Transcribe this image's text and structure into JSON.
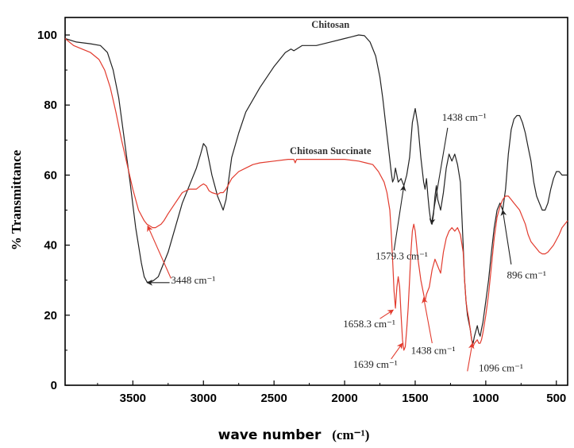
{
  "chart_data": {
    "type": "line",
    "title": "",
    "xlabel": "wave number",
    "xlabel_unit": "(cm⁻¹)",
    "ylabel": "% Transmittance",
    "xlim": [
      3980,
      420
    ],
    "x_reversed": true,
    "ylim": [
      0,
      105
    ],
    "x_ticks": [
      3500,
      3000,
      2500,
      2000,
      1500,
      1000,
      500
    ],
    "y_ticks": [
      0,
      20,
      40,
      60,
      80,
      100
    ],
    "grid": false,
    "series": [
      {
        "name": "Chitosan",
        "color": "#222222",
        "points": [
          [
            3980,
            99
          ],
          [
            3900,
            98
          ],
          [
            3800,
            97.5
          ],
          [
            3730,
            97
          ],
          [
            3680,
            95
          ],
          [
            3640,
            90
          ],
          [
            3600,
            82
          ],
          [
            3560,
            70
          ],
          [
            3520,
            58
          ],
          [
            3480,
            45
          ],
          [
            3440,
            35
          ],
          [
            3420,
            31
          ],
          [
            3400,
            29.5
          ],
          [
            3380,
            29.3
          ],
          [
            3350,
            30
          ],
          [
            3320,
            31
          ],
          [
            3300,
            33
          ],
          [
            3250,
            38
          ],
          [
            3200,
            45
          ],
          [
            3150,
            52
          ],
          [
            3100,
            57
          ],
          [
            3050,
            62
          ],
          [
            3020,
            66
          ],
          [
            3000,
            69
          ],
          [
            2980,
            68
          ],
          [
            2960,
            64
          ],
          [
            2940,
            60
          ],
          [
            2920,
            57
          ],
          [
            2900,
            54
          ],
          [
            2880,
            52
          ],
          [
            2860,
            50
          ],
          [
            2840,
            53
          ],
          [
            2800,
            65
          ],
          [
            2750,
            72
          ],
          [
            2700,
            78
          ],
          [
            2600,
            85
          ],
          [
            2500,
            91
          ],
          [
            2420,
            95
          ],
          [
            2380,
            96
          ],
          [
            2360,
            95.5
          ],
          [
            2340,
            96
          ],
          [
            2300,
            97
          ],
          [
            2200,
            97
          ],
          [
            2100,
            98
          ],
          [
            2000,
            99
          ],
          [
            1950,
            99.5
          ],
          [
            1900,
            100
          ],
          [
            1860,
            99.8
          ],
          [
            1820,
            98
          ],
          [
            1780,
            94
          ],
          [
            1750,
            88
          ],
          [
            1730,
            82
          ],
          [
            1710,
            75
          ],
          [
            1690,
            68
          ],
          [
            1670,
            61
          ],
          [
            1660,
            58
          ],
          [
            1650,
            59
          ],
          [
            1640,
            62
          ],
          [
            1630,
            60
          ],
          [
            1620,
            58
          ],
          [
            1600,
            59
          ],
          [
            1580,
            57
          ],
          [
            1560,
            60
          ],
          [
            1540,
            65
          ],
          [
            1520,
            75
          ],
          [
            1500,
            79
          ],
          [
            1480,
            74
          ],
          [
            1460,
            65
          ],
          [
            1440,
            58
          ],
          [
            1430,
            56
          ],
          [
            1420,
            59
          ],
          [
            1410,
            54
          ],
          [
            1400,
            50
          ],
          [
            1390,
            47
          ],
          [
            1380,
            46
          ],
          [
            1370,
            49
          ],
          [
            1360,
            54
          ],
          [
            1350,
            57
          ],
          [
            1340,
            53
          ],
          [
            1320,
            50
          ],
          [
            1300,
            55
          ],
          [
            1280,
            62
          ],
          [
            1260,
            66
          ],
          [
            1240,
            64
          ],
          [
            1220,
            66
          ],
          [
            1200,
            63
          ],
          [
            1180,
            58
          ],
          [
            1160,
            40
          ],
          [
            1150,
            30
          ],
          [
            1140,
            24
          ],
          [
            1130,
            20
          ],
          [
            1120,
            18
          ],
          [
            1110,
            16
          ],
          [
            1100,
            13
          ],
          [
            1090,
            12
          ],
          [
            1080,
            14
          ],
          [
            1060,
            17
          ],
          [
            1050,
            15
          ],
          [
            1040,
            14
          ],
          [
            1030,
            16
          ],
          [
            1020,
            18
          ],
          [
            1000,
            24
          ],
          [
            980,
            30
          ],
          [
            960,
            38
          ],
          [
            940,
            45
          ],
          [
            920,
            50
          ],
          [
            900,
            52
          ],
          [
            890,
            51
          ],
          [
            880,
            50
          ],
          [
            860,
            56
          ],
          [
            840,
            66
          ],
          [
            820,
            73
          ],
          [
            800,
            76
          ],
          [
            780,
            77
          ],
          [
            760,
            77
          ],
          [
            740,
            75
          ],
          [
            720,
            72
          ],
          [
            700,
            68
          ],
          [
            680,
            64
          ],
          [
            660,
            58
          ],
          [
            640,
            54
          ],
          [
            620,
            52
          ],
          [
            600,
            50
          ],
          [
            580,
            50
          ],
          [
            560,
            52
          ],
          [
            540,
            56
          ],
          [
            520,
            59
          ],
          [
            500,
            61
          ],
          [
            480,
            61
          ],
          [
            460,
            60
          ],
          [
            440,
            60
          ],
          [
            420,
            60
          ]
        ]
      },
      {
        "name": "Chitosan Succinate",
        "color": "#e23b2e",
        "points": [
          [
            3980,
            99
          ],
          [
            3920,
            97
          ],
          [
            3860,
            96
          ],
          [
            3800,
            95
          ],
          [
            3740,
            93
          ],
          [
            3700,
            90
          ],
          [
            3660,
            85
          ],
          [
            3620,
            78
          ],
          [
            3580,
            70
          ],
          [
            3540,
            63
          ],
          [
            3500,
            56
          ],
          [
            3460,
            50
          ],
          [
            3420,
            47
          ],
          [
            3400,
            46
          ],
          [
            3380,
            45.5
          ],
          [
            3360,
            45
          ],
          [
            3340,
            45
          ],
          [
            3320,
            45.5
          ],
          [
            3300,
            46
          ],
          [
            3280,
            47
          ],
          [
            3250,
            49
          ],
          [
            3200,
            52
          ],
          [
            3150,
            55
          ],
          [
            3100,
            56
          ],
          [
            3050,
            56
          ],
          [
            3020,
            57
          ],
          [
            3000,
            57.5
          ],
          [
            2980,
            57
          ],
          [
            2960,
            55.5
          ],
          [
            2940,
            55
          ],
          [
            2900,
            54.5
          ],
          [
            2880,
            55
          ],
          [
            2860,
            55
          ],
          [
            2840,
            56
          ],
          [
            2800,
            59
          ],
          [
            2750,
            61
          ],
          [
            2700,
            62
          ],
          [
            2650,
            63
          ],
          [
            2600,
            63.5
          ],
          [
            2500,
            64
          ],
          [
            2400,
            64.5
          ],
          [
            2360,
            64.5
          ],
          [
            2350,
            63.5
          ],
          [
            2340,
            64.5
          ],
          [
            2300,
            64.5
          ],
          [
            2200,
            64.5
          ],
          [
            2100,
            64.5
          ],
          [
            2000,
            64.5
          ],
          [
            1900,
            64
          ],
          [
            1850,
            63.5
          ],
          [
            1800,
            63
          ],
          [
            1760,
            61
          ],
          [
            1720,
            58
          ],
          [
            1700,
            55
          ],
          [
            1680,
            50
          ],
          [
            1670,
            44
          ],
          [
            1660,
            36
          ],
          [
            1650,
            27
          ],
          [
            1640,
            22
          ],
          [
            1630,
            28
          ],
          [
            1620,
            31
          ],
          [
            1610,
            28
          ],
          [
            1600,
            20
          ],
          [
            1590,
            13
          ],
          [
            1580,
            10
          ],
          [
            1570,
            11
          ],
          [
            1560,
            16
          ],
          [
            1550,
            22
          ],
          [
            1540,
            30
          ],
          [
            1530,
            38
          ],
          [
            1520,
            44
          ],
          [
            1510,
            46
          ],
          [
            1500,
            44
          ],
          [
            1480,
            36
          ],
          [
            1460,
            30
          ],
          [
            1440,
            26
          ],
          [
            1430,
            24
          ],
          [
            1420,
            26
          ],
          [
            1400,
            28
          ],
          [
            1380,
            33
          ],
          [
            1360,
            36
          ],
          [
            1340,
            34
          ],
          [
            1320,
            32
          ],
          [
            1300,
            38
          ],
          [
            1280,
            42
          ],
          [
            1260,
            44
          ],
          [
            1240,
            45
          ],
          [
            1220,
            44
          ],
          [
            1200,
            45
          ],
          [
            1180,
            43
          ],
          [
            1160,
            38
          ],
          [
            1150,
            30
          ],
          [
            1140,
            24
          ],
          [
            1130,
            21
          ],
          [
            1120,
            19
          ],
          [
            1110,
            16
          ],
          [
            1100,
            13
          ],
          [
            1090,
            11
          ],
          [
            1080,
            12
          ],
          [
            1060,
            13
          ],
          [
            1050,
            12
          ],
          [
            1040,
            12
          ],
          [
            1030,
            13
          ],
          [
            1020,
            15
          ],
          [
            1000,
            20
          ],
          [
            980,
            26
          ],
          [
            960,
            34
          ],
          [
            940,
            42
          ],
          [
            920,
            48
          ],
          [
            900,
            51
          ],
          [
            880,
            53
          ],
          [
            860,
            54
          ],
          [
            840,
            54
          ],
          [
            820,
            53
          ],
          [
            800,
            52
          ],
          [
            780,
            51
          ],
          [
            760,
            50
          ],
          [
            740,
            48
          ],
          [
            720,
            46
          ],
          [
            700,
            43
          ],
          [
            680,
            41
          ],
          [
            660,
            40
          ],
          [
            640,
            39
          ],
          [
            620,
            38
          ],
          [
            600,
            37.5
          ],
          [
            580,
            37.5
          ],
          [
            560,
            38
          ],
          [
            540,
            39
          ],
          [
            520,
            40
          ],
          [
            500,
            41.5
          ],
          [
            480,
            43
          ],
          [
            460,
            45
          ],
          [
            440,
            46
          ],
          [
            420,
            47
          ]
        ]
      }
    ],
    "series_labels": [
      {
        "text": "Chitosan",
        "x": 2100,
        "y": 102
      },
      {
        "text": "Chitosan Succinate",
        "x": 2100,
        "y": 66
      }
    ],
    "annotations": [
      {
        "text": "3448 cm⁻¹",
        "color": "#222222",
        "tx": 3230,
        "ty": 29,
        "arrow": [
          [
            3240,
            29.3
          ],
          [
            3400,
            29.3
          ]
        ],
        "arrow_color": "#222222"
      },
      {
        "text": "",
        "color": "#e23b2e",
        "tx": 0,
        "ty": 0,
        "arrow": [
          [
            3230,
            30.5
          ],
          [
            3395,
            45.5
          ]
        ],
        "arrow_color": "#e23b2e"
      },
      {
        "text": "1579.3 cm⁻¹",
        "color": "#222222",
        "tx": 1780,
        "ty": 36,
        "arrow": [
          [
            1650,
            38.5
          ],
          [
            1580,
            57
          ]
        ],
        "arrow_color": "#222222"
      },
      {
        "text": "1438 cm⁻¹",
        "color": "#222222",
        "tx": 1310,
        "ty": 75.5,
        "arrow": [
          [
            1270,
            73.5
          ],
          [
            1385,
            46
          ]
        ],
        "arrow_color": "#222222"
      },
      {
        "text": "896 cm⁻¹",
        "color": "#222222",
        "tx": 850,
        "ty": 30.5,
        "arrow": [
          [
            820,
            34.5
          ],
          [
            880,
            50
          ]
        ],
        "arrow_color": "#222222"
      },
      {
        "text": "1658.3 cm⁻¹",
        "color": "#222222",
        "tx": 2010,
        "ty": 16.5,
        "arrow": [
          [
            1750,
            19
          ],
          [
            1655,
            21.5
          ]
        ],
        "arrow_color": "#e23b2e"
      },
      {
        "text": "1639 cm⁻¹",
        "color": "#222222",
        "tx": 1940,
        "ty": 5,
        "arrow": [
          [
            1670,
            7.5
          ],
          [
            1590,
            12
          ]
        ],
        "arrow_color": "#e23b2e"
      },
      {
        "text": "1438 cm⁻¹",
        "color": "#222222",
        "tx": 1530,
        "ty": 9,
        "arrow": [
          [
            1380,
            12
          ],
          [
            1440,
            25
          ]
        ],
        "arrow_color": "#e23b2e"
      },
      {
        "text": "1096 cm⁻¹",
        "color": "#222222",
        "tx": 1050,
        "ty": 4,
        "arrow": [
          [
            1130,
            4
          ],
          [
            1095,
            12
          ]
        ],
        "arrow_color": "#e23b2e"
      }
    ]
  }
}
